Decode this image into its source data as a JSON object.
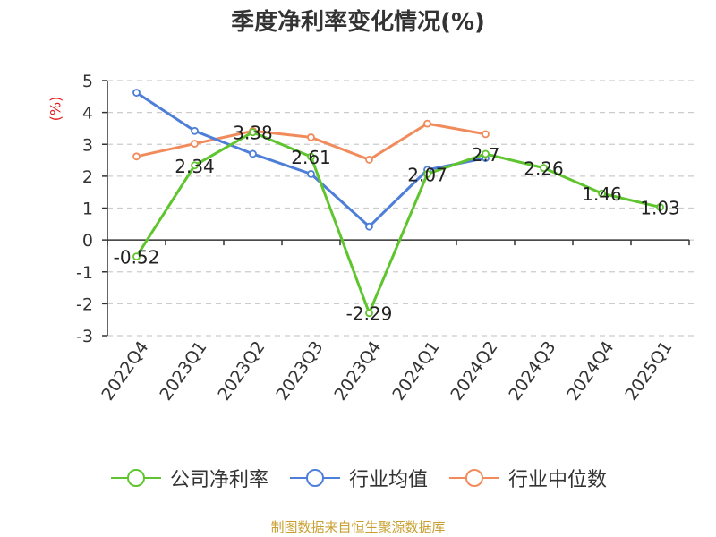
{
  "title": "季度净利率变化情况(%)",
  "unit_label": "(%)",
  "source": "制图数据来自恒生聚源数据库",
  "colors": {
    "company": "#5fc52e",
    "industry_avg": "#4e7fd8",
    "industry_median": "#f28b5c",
    "axis": "#333333",
    "grid": "#cccccc",
    "unit": "#e01f1f"
  },
  "chart_data": {
    "type": "line",
    "title": "季度净利率变化情况(%)",
    "ylabel": "(%)",
    "categories": [
      "2022Q4",
      "2023Q1",
      "2023Q2",
      "2023Q3",
      "2023Q4",
      "2024Q1",
      "2024Q2",
      "2024Q3",
      "2024Q4",
      "2025Q1"
    ],
    "ylim": [
      -3,
      5
    ],
    "yticks": [
      5,
      4,
      3,
      2,
      1,
      0,
      -1,
      -2,
      -3
    ],
    "grid": true,
    "legend_position": "bottom",
    "series": [
      {
        "name": "公司净利率",
        "color": "#5fc52e",
        "values": [
          -0.52,
          2.34,
          3.38,
          2.61,
          -2.29,
          2.07,
          2.7,
          2.26,
          1.46,
          1.03
        ],
        "labels": [
          "-0.52",
          "2.34",
          "3.38",
          "2.61",
          "-2.29",
          "2.07",
          "2.7",
          "2.26",
          "1.46",
          "1.03"
        ]
      },
      {
        "name": "行业均值",
        "color": "#4e7fd8",
        "values": [
          4.62,
          3.42,
          2.7,
          2.07,
          0.42,
          2.2,
          2.57,
          null,
          null,
          null
        ]
      },
      {
        "name": "行业中位数",
        "color": "#f28b5c",
        "values": [
          2.62,
          3.02,
          3.42,
          3.22,
          2.52,
          3.65,
          3.32,
          null,
          null,
          null
        ]
      }
    ]
  }
}
